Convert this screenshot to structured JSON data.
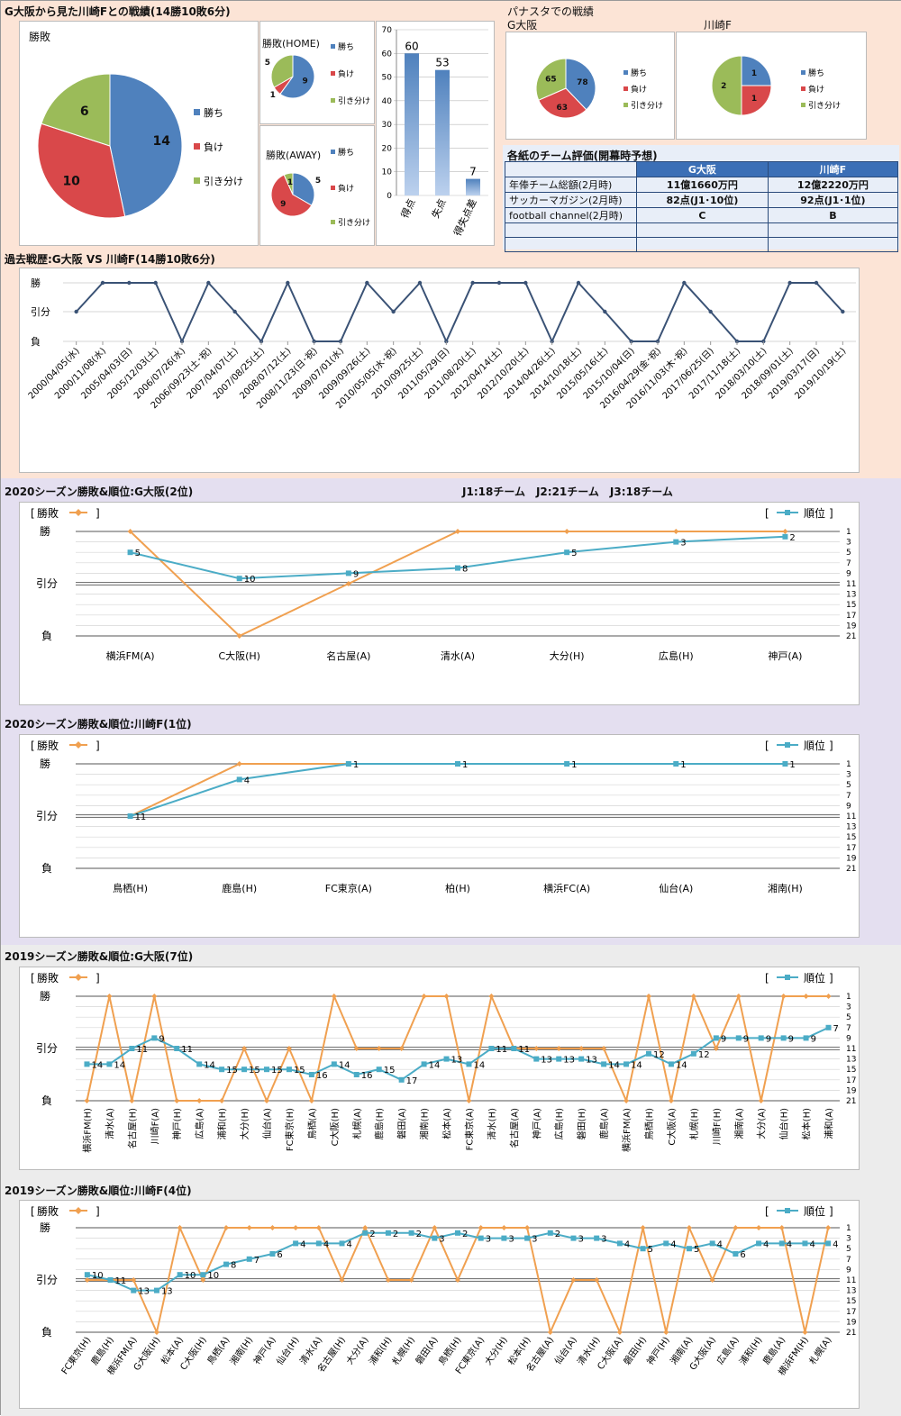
{
  "colors": {
    "win": "#4f81bd",
    "loss": "#d9484a",
    "draw": "#9bbb59",
    "orange": "#f0a050",
    "teal": "#4bacc6",
    "line": "#3a5275",
    "top_bg": "#fce4d6",
    "purple_bg": "#e4dff0",
    "grey_bg": "#ececec",
    "header": "#3b6fb6"
  },
  "header": {
    "title": "G大阪から見た川崎Fとの戦績(14勝10敗6分)",
    "panasuta_title": "パナスタでの戦績",
    "panasuta_team1": "G大阪",
    "panasuta_team2": "川崎F"
  },
  "legend": {
    "win": "勝ち",
    "loss": "負け",
    "draw": "引き分け"
  },
  "evaluation": {
    "title": "各紙のチーム評価(開幕時予想)",
    "col1": "G大阪",
    "col2": "川崎F",
    "rows": [
      {
        "label": "年俸チーム総額(2月時)",
        "v1": "11億1660万円",
        "v2": "12億2220万円"
      },
      {
        "label": "サッカーマガジン(2月時)",
        "v1": "82点(J1･10位)",
        "v2": "92点(J1･1位)"
      },
      {
        "label": "football channel(2月時)",
        "v1": "C",
        "v2": "B"
      }
    ]
  },
  "history_title": "過去戦歴:G大阪 VS 川崎F(14勝10敗6分)",
  "season_note": "J1:18チーム　J2:21チーム　J3:18チーム",
  "chart_data": [
    {
      "type": "pie",
      "title": "勝敗",
      "categories": [
        "勝ち",
        "負け",
        "引き分け"
      ],
      "values": [
        14,
        10,
        6
      ]
    },
    {
      "type": "pie",
      "title": "勝敗(HOME)",
      "categories": [
        "勝ち",
        "負け",
        "引き分け"
      ],
      "values": [
        9,
        1,
        5
      ]
    },
    {
      "type": "pie",
      "title": "勝敗(AWAY)",
      "categories": [
        "勝ち",
        "負け",
        "引き分け"
      ],
      "values": [
        5,
        9,
        1
      ]
    },
    {
      "type": "bar",
      "categories": [
        "得点",
        "失点",
        "得失点差"
      ],
      "values": [
        60,
        53,
        7
      ],
      "ylim": [
        0,
        70
      ]
    },
    {
      "type": "pie",
      "title": "G大阪",
      "categories": [
        "勝ち",
        "負け",
        "引き分け"
      ],
      "values": [
        78,
        63,
        65
      ]
    },
    {
      "type": "pie",
      "title": "川崎F",
      "categories": [
        "勝ち",
        "負け",
        "引き分け"
      ],
      "values": [
        1,
        1,
        2
      ]
    },
    {
      "type": "line",
      "title": "過去戦歴:G大阪 VS 川崎F(14勝10敗6分)",
      "y_categories": [
        "勝",
        "引分",
        "負"
      ],
      "x": [
        "2000/04/05(水)",
        "2000/11/08(水)",
        "2005/04/03(日)",
        "2005/12/03(土)",
        "2006/07/26(水)",
        "2006/09/23(土･祝)",
        "2007/04/07(土)",
        "2007/08/25(土)",
        "2008/07/12(土)",
        "2008/11/23(日･祝)",
        "2009/07/01(水)",
        "2009/09/26(土)",
        "2010/05/05(水･祝)",
        "2010/09/25(土)",
        "2011/05/29(日)",
        "2011/08/20(土)",
        "2012/04/14(土)",
        "2012/10/20(土)",
        "2014/04/26(土)",
        "2014/10/18(土)",
        "2015/05/16(土)",
        "2015/10/04(日)",
        "2016/04/29(金･祝)",
        "2016/11/03(木･祝)",
        "2017/06/25(日)",
        "2017/11/18(土)",
        "2018/03/10(土)",
        "2018/09/01(土)",
        "2019/03/17(日)",
        "2019/10/19(土)"
      ],
      "values": [
        "引分",
        "勝",
        "勝",
        "勝",
        "負",
        "勝",
        "引分",
        "負",
        "勝",
        "負",
        "負",
        "勝",
        "引分",
        "勝",
        "負",
        "勝",
        "勝",
        "勝",
        "負",
        "勝",
        "引分",
        "負",
        "負",
        "勝",
        "引分",
        "負",
        "負",
        "勝",
        "勝",
        "引分"
      ]
    },
    {
      "type": "line",
      "title": "2020シーズン勝敗&順位:G大阪(2位)",
      "x": [
        "横浜FM(A)",
        "C大阪(H)",
        "名古屋(A)",
        "清水(A)",
        "大分(H)",
        "広島(H)",
        "神戸(A)"
      ],
      "series": [
        {
          "name": "勝敗",
          "values": [
            "勝",
            "負",
            "引分",
            "勝",
            "勝",
            "勝",
            "勝"
          ]
        },
        {
          "name": "順位",
          "values": [
            5,
            10,
            9,
            8,
            5,
            3,
            2
          ]
        }
      ],
      "y2lim": [
        1,
        21
      ]
    },
    {
      "type": "line",
      "title": "2020シーズン勝敗&順位:川崎F(1位)",
      "x": [
        "鳥栖(H)",
        "鹿島(H)",
        "FC東京(A)",
        "柏(H)",
        "横浜FC(A)",
        "仙台(A)",
        "湘南(H)"
      ],
      "series": [
        {
          "name": "勝敗",
          "values": [
            "引分",
            "勝",
            "勝",
            "勝",
            "勝",
            "勝",
            "勝"
          ]
        },
        {
          "name": "順位",
          "values": [
            11,
            4,
            1,
            1,
            1,
            1,
            1
          ]
        }
      ],
      "y2lim": [
        1,
        21
      ]
    },
    {
      "type": "line",
      "title": "2019シーズン勝敗&順位:G大阪(7位)",
      "x": [
        "横浜FM(H)",
        "清水(A)",
        "名古屋(H)",
        "川崎F(A)",
        "神戸(H)",
        "広島(A)",
        "浦和(H)",
        "大分(H)",
        "仙台(A)",
        "FC東京(H)",
        "鳥栖(A)",
        "C大阪(H)",
        "札幌(A)",
        "鹿島(H)",
        "磐田(A)",
        "湘南(H)",
        "松本(A)",
        "FC東京(A)",
        "清水(H)",
        "名古屋(A)",
        "神戸(A)",
        "広島(H)",
        "磐田(H)",
        "鹿島(A)",
        "横浜FM(A)",
        "鳥栖(H)",
        "C大阪(A)",
        "札幌(H)",
        "川崎F(H)",
        "湘南(A)",
        "大分(A)",
        "仙台(H)",
        "松本(H)",
        "浦和(A)"
      ],
      "series": [
        {
          "name": "勝敗",
          "values": [
            "負",
            "勝",
            "負",
            "勝",
            "負",
            "負",
            "負",
            "引分",
            "負",
            "引分",
            "負",
            "勝",
            "引分",
            "引分",
            "引分",
            "勝",
            "勝",
            "負",
            "勝",
            "引分",
            "引分",
            "引分",
            "引分",
            "引分",
            "負",
            "勝",
            "負",
            "勝",
            "引分",
            "勝",
            "負",
            "勝",
            "勝",
            "勝"
          ]
        },
        {
          "name": "順位",
          "values": [
            14,
            14,
            11,
            9,
            11,
            14,
            15,
            15,
            15,
            15,
            16,
            14,
            16,
            15,
            17,
            14,
            13,
            14,
            11,
            11,
            13,
            13,
            13,
            14,
            14,
            12,
            14,
            12,
            9,
            9,
            9,
            9,
            9,
            7
          ]
        }
      ],
      "y2lim": [
        1,
        21
      ]
    },
    {
      "type": "line",
      "title": "2019シーズン勝敗&順位:川崎F(4位)",
      "x": [
        "FC東京(H)",
        "鹿島(H)",
        "横浜FM(A)",
        "G大阪(H)",
        "松本(A)",
        "C大阪(H)",
        "鳥栖(A)",
        "湘南(H)",
        "神戸(A)",
        "仙台(H)",
        "清水(A)",
        "名古屋(H)",
        "大分(A)",
        "浦和(H)",
        "札幌(H)",
        "磐田(A)",
        "鳥栖(H)",
        "FC東京(A)",
        "大分(H)",
        "松本(H)",
        "名古屋(A)",
        "仙台(A)",
        "清水(H)",
        "C大阪(A)",
        "磐田(H)",
        "神戸(H)",
        "湘南(A)",
        "G大阪(A)",
        "広島(A)",
        "浦和(H)",
        "鹿島(A)",
        "横浜FM(H)",
        "札幌(A)"
      ],
      "series": [
        {
          "name": "勝敗",
          "values": [
            "引分",
            "引分",
            "引分",
            "負",
            "勝",
            "引分",
            "勝",
            "勝",
            "勝",
            "勝",
            "勝",
            "引分",
            "勝",
            "引分",
            "引分",
            "勝",
            "引分",
            "勝",
            "勝",
            "勝",
            "負",
            "引分",
            "引分",
            "負",
            "勝",
            "負",
            "勝",
            "引分",
            "勝",
            "勝",
            "勝",
            "負",
            "勝"
          ]
        },
        {
          "name": "順位",
          "values": [
            10,
            11,
            13,
            13,
            10,
            10,
            8,
            7,
            6,
            4,
            4,
            4,
            2,
            2,
            2,
            3,
            2,
            3,
            3,
            3,
            2,
            3,
            3,
            4,
            5,
            4,
            5,
            4,
            6,
            4,
            4,
            4,
            4
          ]
        }
      ],
      "y2lim": [
        1,
        21
      ]
    }
  ],
  "labels": {
    "win_loss": "勝敗",
    "rank": "順位",
    "y_win": "勝",
    "y_draw": "引分",
    "y_loss": "負"
  }
}
